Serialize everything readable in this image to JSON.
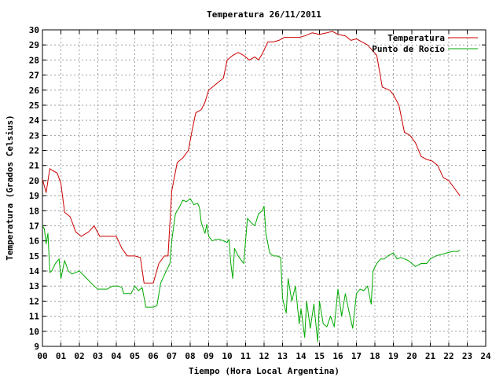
{
  "chart_data": {
    "type": "line",
    "title": "Temperatura 26/11/2011",
    "xlabel": "Tiempo (Hora Local Argentina)",
    "ylabel": "Temperatura (Grados Celsius)",
    "xlim": [
      0,
      24
    ],
    "ylim": [
      9,
      30
    ],
    "x_ticks": [
      0,
      1,
      2,
      3,
      4,
      5,
      6,
      7,
      8,
      9,
      10,
      11,
      12,
      13,
      14,
      15,
      16,
      17,
      18,
      19,
      20,
      21,
      22,
      23,
      24
    ],
    "x_tick_labels": [
      "00",
      "01",
      "02",
      "03",
      "04",
      "05",
      "06",
      "07",
      "08",
      "09",
      "10",
      "11",
      "12",
      "13",
      "14",
      "15",
      "16",
      "17",
      "18",
      "19",
      "20",
      "21",
      "22",
      "23",
      "24"
    ],
    "y_ticks": [
      9,
      10,
      11,
      12,
      13,
      14,
      15,
      16,
      17,
      18,
      19,
      20,
      21,
      22,
      23,
      24,
      25,
      26,
      27,
      28,
      29,
      30
    ],
    "y_tick_labels": [
      "9",
      "10",
      "11",
      "12",
      "13",
      "14",
      "15",
      "16",
      "17",
      "18",
      "19",
      "20",
      "21",
      "22",
      "23",
      "24",
      "25",
      "26",
      "27",
      "28",
      "29",
      "30"
    ],
    "grid": true,
    "legend_position": "top-right",
    "series": [
      {
        "name": "Temperatura",
        "color": "#cc0000",
        "x": [
          0.0,
          0.2,
          0.4,
          0.5,
          0.8,
          1.0,
          1.2,
          1.5,
          1.8,
          2.1,
          2.5,
          2.8,
          3.1,
          3.3,
          3.5,
          4.0,
          4.3,
          4.6,
          5.0,
          5.3,
          5.5,
          5.8,
          6.0,
          6.3,
          6.6,
          6.8,
          7.0,
          7.3,
          7.6,
          7.9,
          8.1,
          8.3,
          8.6,
          8.8,
          9.0,
          9.3,
          9.6,
          9.8,
          10.0,
          10.3,
          10.6,
          10.9,
          11.2,
          11.5,
          11.7,
          11.9,
          12.2,
          12.5,
          12.8,
          13.1,
          13.5,
          13.9,
          14.2,
          14.6,
          15.0,
          15.4,
          15.7,
          16.0,
          16.4,
          16.7,
          17.0,
          17.3,
          17.6,
          17.9,
          18.1,
          18.4,
          18.8,
          19.0,
          19.3,
          19.6,
          19.9,
          20.2,
          20.5,
          20.8,
          21.1,
          21.4,
          21.7,
          22.0,
          22.3,
          22.6
        ],
        "values": [
          20.1,
          19.2,
          20.8,
          20.7,
          20.5,
          19.8,
          17.9,
          17.6,
          16.6,
          16.3,
          16.6,
          17.0,
          16.3,
          16.3,
          16.3,
          16.3,
          15.5,
          15.0,
          15.0,
          14.9,
          13.2,
          13.2,
          13.2,
          14.5,
          15.0,
          15.0,
          19.3,
          21.2,
          21.5,
          22.0,
          23.3,
          24.5,
          24.7,
          25.2,
          26.0,
          26.3,
          26.6,
          26.8,
          28.0,
          28.3,
          28.5,
          28.3,
          28.0,
          28.2,
          28.0,
          28.4,
          29.2,
          29.2,
          29.3,
          29.5,
          29.5,
          29.5,
          29.6,
          29.8,
          29.7,
          29.8,
          29.9,
          29.7,
          29.6,
          29.3,
          29.4,
          29.2,
          29.0,
          28.6,
          28.3,
          26.2,
          26.0,
          25.7,
          25.0,
          23.2,
          23.0,
          22.5,
          21.6,
          21.4,
          21.3,
          21.0,
          20.2,
          20.0,
          19.5,
          19.0
        ]
      },
      {
        "name": "Punto de Rocío",
        "color": "#00aa00",
        "x": [
          0.0,
          0.1,
          0.2,
          0.3,
          0.4,
          0.5,
          0.7,
          0.9,
          1.0,
          1.2,
          1.4,
          1.6,
          2.0,
          2.4,
          2.8,
          3.0,
          3.2,
          3.5,
          3.8,
          4.1,
          4.3,
          4.4,
          4.8,
          5.0,
          5.2,
          5.4,
          5.6,
          6.0,
          6.2,
          6.4,
          6.7,
          6.9,
          7.0,
          7.2,
          7.4,
          7.6,
          7.8,
          8.0,
          8.2,
          8.4,
          8.5,
          8.6,
          8.8,
          8.9,
          9.0,
          9.2,
          9.4,
          9.6,
          9.8,
          10.0,
          10.1,
          10.2,
          10.3,
          10.4,
          10.6,
          10.9,
          11.1,
          11.3,
          11.5,
          11.7,
          11.9,
          12.0,
          12.1,
          12.3,
          12.5,
          12.7,
          12.9,
          13.0,
          13.2,
          13.3,
          13.5,
          13.7,
          13.9,
          14.0,
          14.2,
          14.3,
          14.5,
          14.7,
          14.9,
          15.0,
          15.2,
          15.4,
          15.6,
          15.8,
          16.0,
          16.2,
          16.4,
          16.6,
          16.8,
          17.0,
          17.2,
          17.4,
          17.6,
          17.8,
          17.9,
          18.1,
          18.3,
          18.5,
          18.7,
          19.0,
          19.2,
          19.4,
          19.6,
          19.8,
          20.0,
          20.2,
          20.5,
          20.8,
          21.0,
          21.3,
          21.6,
          21.9,
          22.2,
          22.5,
          22.6
        ],
        "values": [
          17.0,
          16.8,
          15.8,
          16.5,
          13.9,
          14.0,
          14.5,
          14.8,
          13.5,
          14.7,
          14.0,
          13.8,
          14.0,
          13.5,
          13.0,
          12.8,
          12.8,
          12.8,
          13.0,
          13.0,
          12.9,
          12.5,
          12.5,
          13.0,
          12.7,
          12.9,
          11.6,
          11.6,
          11.7,
          13.2,
          14.0,
          14.5,
          16.0,
          17.8,
          18.2,
          18.7,
          18.6,
          18.8,
          18.4,
          18.5,
          18.2,
          17.2,
          16.5,
          17.1,
          16.3,
          16.0,
          16.1,
          16.1,
          16.0,
          15.9,
          16.1,
          14.5,
          13.5,
          15.5,
          15.0,
          14.5,
          17.5,
          17.2,
          17.0,
          17.8,
          18.0,
          18.3,
          16.5,
          15.2,
          15.0,
          15.0,
          14.9,
          12.2,
          11.2,
          13.5,
          12.0,
          13.0,
          10.5,
          11.5,
          9.6,
          12.0,
          10.2,
          11.8,
          9.3,
          12.0,
          10.5,
          10.3,
          11.0,
          10.3,
          12.8,
          11.0,
          12.5,
          11.3,
          10.2,
          12.5,
          12.8,
          12.7,
          13.0,
          11.8,
          14.0,
          14.5,
          14.8,
          14.8,
          15.0,
          15.2,
          14.8,
          14.9,
          14.8,
          14.7,
          14.5,
          14.3,
          14.5,
          14.5,
          14.8,
          15.0,
          15.1,
          15.2,
          15.3,
          15.3,
          15.4
        ]
      }
    ]
  }
}
